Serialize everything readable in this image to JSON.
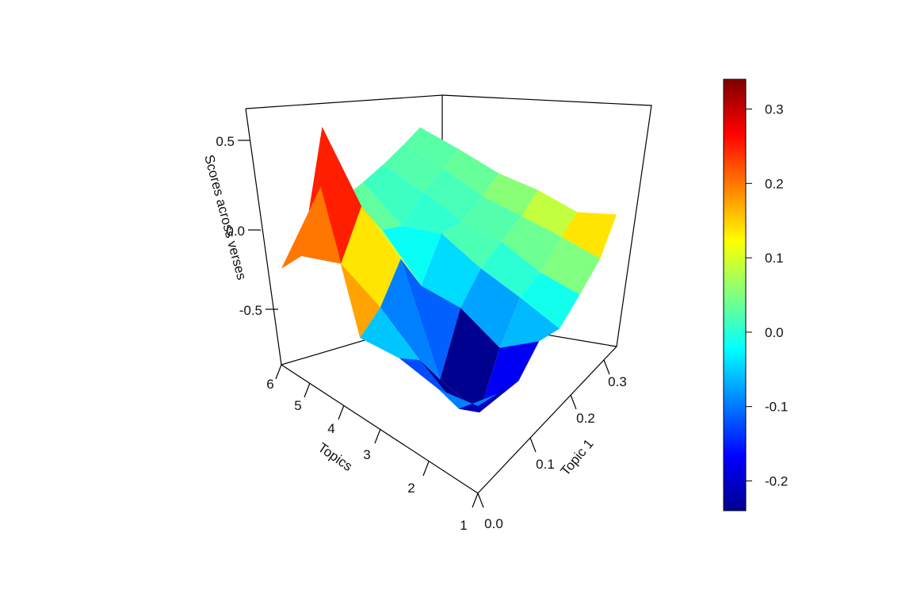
{
  "chart_data": {
    "type": "surface3d",
    "title": "",
    "axes": {
      "z": {
        "label": "Scores across verses",
        "ticks": [
          "0.5",
          "0.0",
          "-0.5"
        ],
        "tick_values": [
          0.5,
          0.0,
          -0.5
        ]
      },
      "topics": {
        "label": "Topics",
        "ticks": [
          "1",
          "2",
          "3",
          "4",
          "5",
          "6"
        ],
        "tick_values": [
          1,
          2,
          3,
          4,
          5,
          6
        ]
      },
      "topic1": {
        "label": "Topic 1",
        "ticks": [
          "0.0",
          "0.1",
          "0.2",
          "0.3"
        ],
        "tick_values": [
          0.0,
          0.1,
          0.2,
          0.3
        ]
      }
    },
    "colorbar": {
      "ticks": [
        "0.3",
        "0.2",
        "0.1",
        "0.0",
        "-0.1",
        "-0.2"
      ],
      "tick_values": [
        0.3,
        0.2,
        0.1,
        0.0,
        -0.1,
        -0.2
      ],
      "range": [
        -0.24,
        0.34
      ],
      "palette": [
        "#00008f",
        "#0000ff",
        "#0080ff",
        "#00ffff",
        "#80ff80",
        "#ffff00",
        "#ff8000",
        "#ff0000",
        "#800000"
      ]
    },
    "grid_topic1": [
      0.0,
      0.05,
      0.1,
      0.15,
      0.2,
      0.25,
      0.3,
      0.34
    ],
    "grid_topics": [
      1,
      2,
      3,
      4,
      5,
      6
    ],
    "z_values": [
      [
        0.0,
        -0.05,
        -0.1,
        0.0,
        -0.05,
        0.02,
        0.1,
        0.25
      ],
      [
        -0.05,
        -0.28,
        -0.42,
        -0.18,
        -0.02,
        0.0,
        0.08,
        0.12
      ],
      [
        -0.02,
        -0.15,
        -0.38,
        -0.1,
        0.0,
        0.03,
        0.05,
        0.1
      ],
      [
        -0.05,
        0.0,
        0.15,
        -0.12,
        0.05,
        0.0,
        0.02,
        0.05
      ],
      [
        0.65,
        0.1,
        0.3,
        0.05,
        -0.05,
        0.02,
        0.03,
        0.04
      ],
      [
        0.05,
        0.0,
        0.6,
        0.08,
        0.05,
        0.03,
        0.02,
        0.02
      ]
    ]
  }
}
